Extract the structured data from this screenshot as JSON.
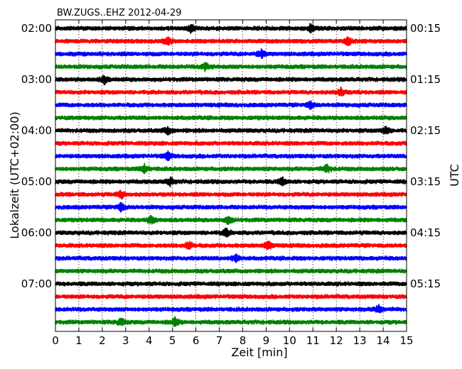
{
  "chart_data": {
    "type": "line",
    "title": "BW.ZUGS..EHZ 2012-04-29",
    "xlabel": "Zeit  [min]",
    "ylabel_left": "Lokalzeit (UTC+02:00)",
    "ylabel_right": "UTC",
    "xlim": [
      0,
      15
    ],
    "x_ticks": [
      "0",
      "1",
      "2",
      "3",
      "4",
      "5",
      "6",
      "7",
      "8",
      "9",
      "10",
      "11",
      "12",
      "13",
      "14",
      "15"
    ],
    "left_ticks": [
      "02:00",
      "03:00",
      "04:00",
      "05:00",
      "06:00",
      "07:00"
    ],
    "right_ticks": [
      "00:15",
      "01:15",
      "02:15",
      "03:15",
      "04:15",
      "05:15"
    ],
    "trace_count": 24,
    "trace_interval_minutes": 15,
    "trace_colors": [
      "#000000",
      "#ff0000",
      "#0000ff",
      "#008000"
    ],
    "grid": "vertical dotted",
    "events": [
      {
        "trace": 0,
        "minute": 5.8
      },
      {
        "trace": 0,
        "minute": 10.9
      },
      {
        "trace": 1,
        "minute": 4.8
      },
      {
        "trace": 1,
        "minute": 12.5
      },
      {
        "trace": 2,
        "minute": 8.8
      },
      {
        "trace": 3,
        "minute": 6.4
      },
      {
        "trace": 4,
        "minute": 2.1
      },
      {
        "trace": 5,
        "minute": 12.2
      },
      {
        "trace": 6,
        "minute": 10.9
      },
      {
        "trace": 8,
        "minute": 4.8
      },
      {
        "trace": 8,
        "minute": 14.1
      },
      {
        "trace": 10,
        "minute": 4.8
      },
      {
        "trace": 11,
        "minute": 3.8
      },
      {
        "trace": 11,
        "minute": 11.6
      },
      {
        "trace": 12,
        "minute": 4.9
      },
      {
        "trace": 12,
        "minute": 9.7
      },
      {
        "trace": 13,
        "minute": 2.8
      },
      {
        "trace": 14,
        "minute": 2.8
      },
      {
        "trace": 15,
        "minute": 4.1
      },
      {
        "trace": 15,
        "minute": 7.4
      },
      {
        "trace": 16,
        "minute": 7.3
      },
      {
        "trace": 17,
        "minute": 5.7
      },
      {
        "trace": 17,
        "minute": 9.1
      },
      {
        "trace": 18,
        "minute": 7.7
      },
      {
        "trace": 22,
        "minute": 13.8
      },
      {
        "trace": 23,
        "minute": 2.8
      },
      {
        "trace": 23,
        "minute": 5.1
      }
    ]
  }
}
